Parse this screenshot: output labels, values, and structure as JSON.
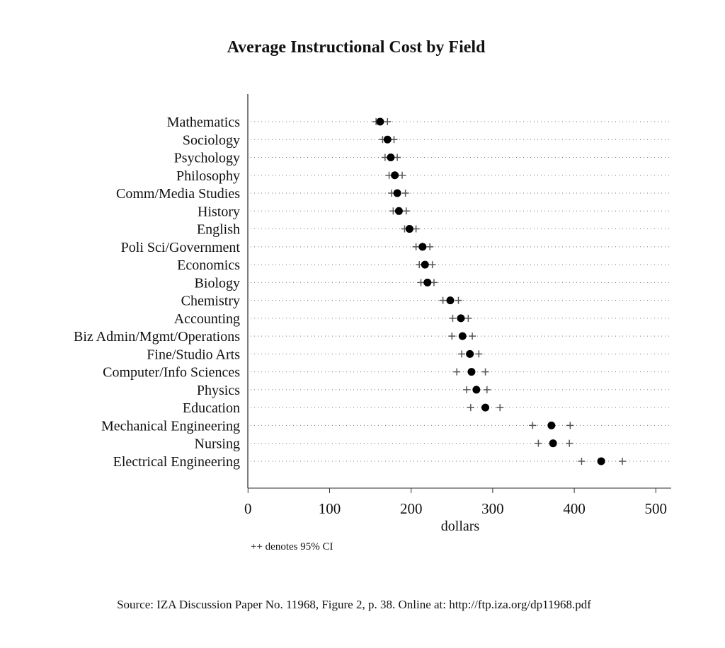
{
  "chart_data": {
    "type": "scatter",
    "title": "Average Instructional Cost by Field",
    "xlabel": "dollars",
    "ylabel": "",
    "xlim": [
      0,
      520
    ],
    "xticks": [
      0,
      100,
      200,
      300,
      400,
      500
    ],
    "grid": "dotted horizontal per category",
    "categories": [
      "Mathematics",
      "Sociology",
      "Psychology",
      "Philosophy",
      "Comm/Media Studies",
      "History",
      "English",
      "Poli Sci/Government",
      "Economics",
      "Biology",
      "Chemistry",
      "Accounting",
      "Biz Admin/Mgmt/Operations",
      "Fine/Studio Arts",
      "Computer/Info Sciences",
      "Physics",
      "Education",
      "Mechanical Engineering",
      "Nursing",
      "Electrical Engineering"
    ],
    "values": [
      162,
      171,
      175,
      180,
      183,
      185,
      198,
      214,
      217,
      220,
      248,
      261,
      263,
      272,
      274,
      280,
      291,
      372,
      374,
      433
    ],
    "ci_low": [
      157,
      165,
      168,
      173,
      176,
      178,
      192,
      206,
      210,
      212,
      239,
      251,
      250,
      262,
      256,
      268,
      273,
      349,
      356,
      409
    ],
    "ci_high": [
      171,
      179,
      183,
      189,
      193,
      194,
      206,
      223,
      226,
      228,
      258,
      270,
      275,
      283,
      291,
      293,
      309,
      395,
      394,
      459
    ],
    "note": "++ denotes 95% CI"
  },
  "source": "Source: IZA Discussion Paper No. 11968, Figure 2, p. 38.  Online at: http://ftp.iza.org/dp11968.pdf"
}
